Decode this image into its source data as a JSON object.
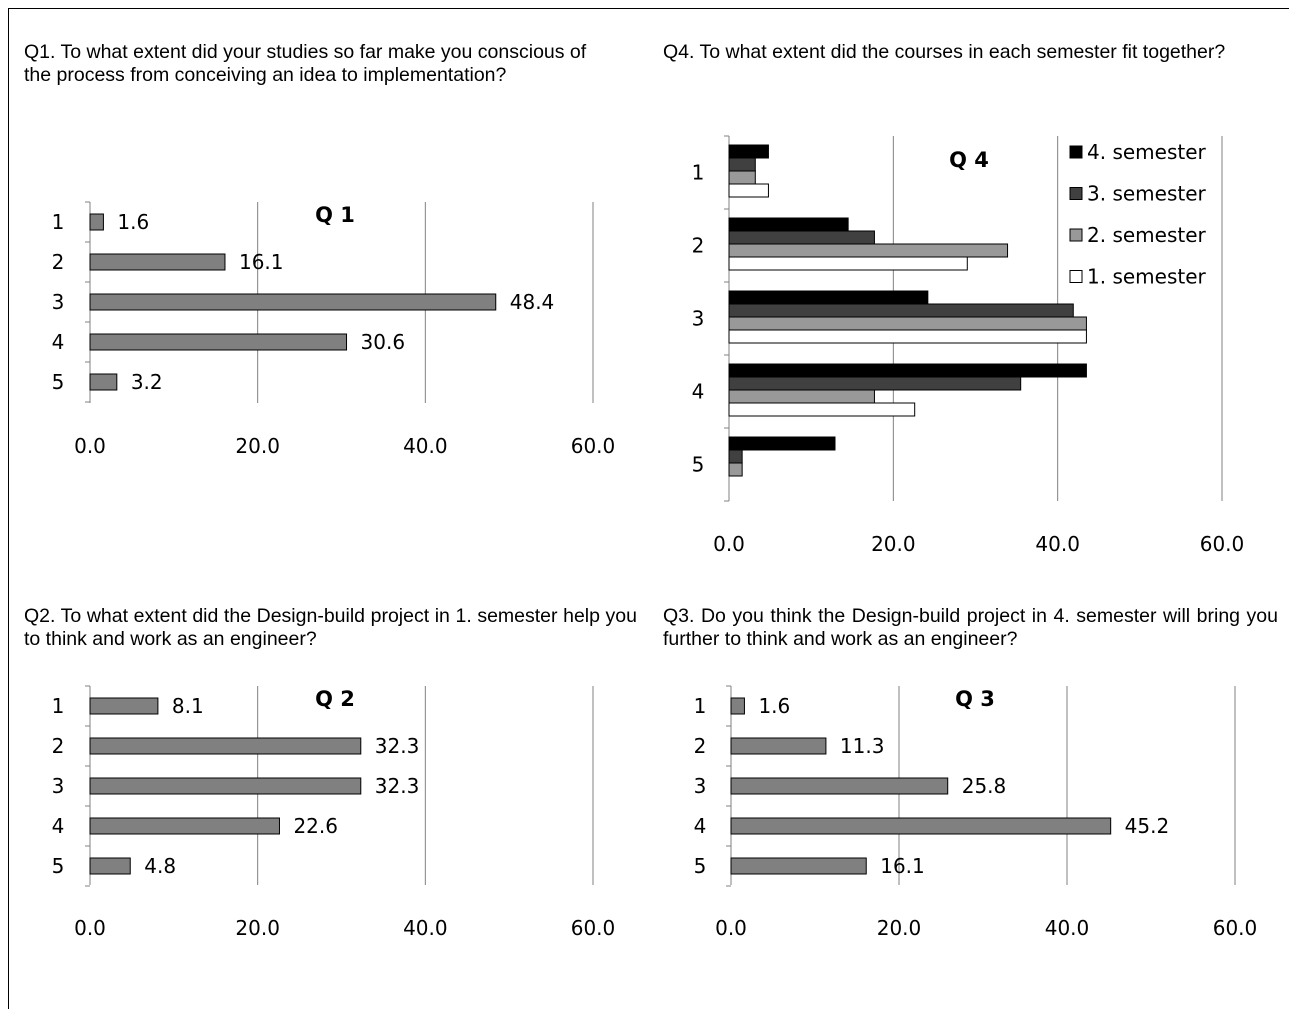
{
  "questions": {
    "q1": "Q1. To what extent did your studies so far make you conscious of the process from conceiving an idea to implementation?",
    "q4": "Q4. To what extent did the courses in each semester fit together?",
    "q2": "Q2. To what extent did the Design-build project in 1. semester help you to think and work as an engineer?",
    "q3": "Q3. Do you think the Design-build project in 4. semester will bring you further to think and work as an engineer?"
  },
  "colors": {
    "bar_single": "#808080",
    "series": [
      "#000000",
      "#404040",
      "#999999",
      "#ffffff"
    ],
    "grid": "#808080",
    "axis": "#808080"
  },
  "chart_data": [
    {
      "id": "q1",
      "type": "bar",
      "orientation": "horizontal",
      "title": "Q 1",
      "categories": [
        "1",
        "2",
        "3",
        "4",
        "5"
      ],
      "values": [
        1.6,
        16.1,
        48.4,
        30.6,
        3.2
      ],
      "value_labels": [
        "1.6",
        "16.1",
        "48.4",
        "30.6",
        "3.2"
      ],
      "x_ticks": [
        "0.0",
        "20.0",
        "40.0",
        "60.0"
      ],
      "xlim": [
        0,
        60
      ],
      "grid": true,
      "legend": "none"
    },
    {
      "id": "q4",
      "type": "bar",
      "orientation": "horizontal",
      "title": "Q 4",
      "categories": [
        "1",
        "2",
        "3",
        "4",
        "5"
      ],
      "series": [
        {
          "name": "4. semester",
          "values": [
            4.8,
            14.5,
            24.2,
            43.5,
            12.9
          ]
        },
        {
          "name": "3. semester",
          "values": [
            3.2,
            17.7,
            41.9,
            35.5,
            1.6
          ]
        },
        {
          "name": "2. semester",
          "values": [
            3.2,
            33.9,
            43.5,
            17.7,
            1.6
          ]
        },
        {
          "name": "1. semester",
          "values": [
            4.8,
            29.0,
            43.5,
            22.6,
            0
          ]
        }
      ],
      "x_ticks": [
        "0.0",
        "20.0",
        "40.0",
        "60.0"
      ],
      "xlim": [
        0,
        60
      ],
      "grid": true,
      "legend": "top-right"
    },
    {
      "id": "q2",
      "type": "bar",
      "orientation": "horizontal",
      "title": "Q 2",
      "categories": [
        "1",
        "2",
        "3",
        "4",
        "5"
      ],
      "values": [
        8.1,
        32.3,
        32.3,
        22.6,
        4.8
      ],
      "value_labels": [
        "8.1",
        "32.3",
        "32.3",
        "22.6",
        "4.8"
      ],
      "x_ticks": [
        "0.0",
        "20.0",
        "40.0",
        "60.0"
      ],
      "xlim": [
        0,
        60
      ],
      "grid": true,
      "legend": "none"
    },
    {
      "id": "q3",
      "type": "bar",
      "orientation": "horizontal",
      "title": "Q 3",
      "categories": [
        "1",
        "2",
        "3",
        "4",
        "5"
      ],
      "values": [
        1.6,
        11.3,
        25.8,
        45.2,
        16.1
      ],
      "value_labels": [
        "1.6",
        "11.3",
        "25.8",
        "45.2",
        "16.1"
      ],
      "x_ticks": [
        "0.0",
        "20.0",
        "40.0",
        "60.0"
      ],
      "xlim": [
        0,
        60
      ],
      "grid": true,
      "legend": "none"
    }
  ]
}
